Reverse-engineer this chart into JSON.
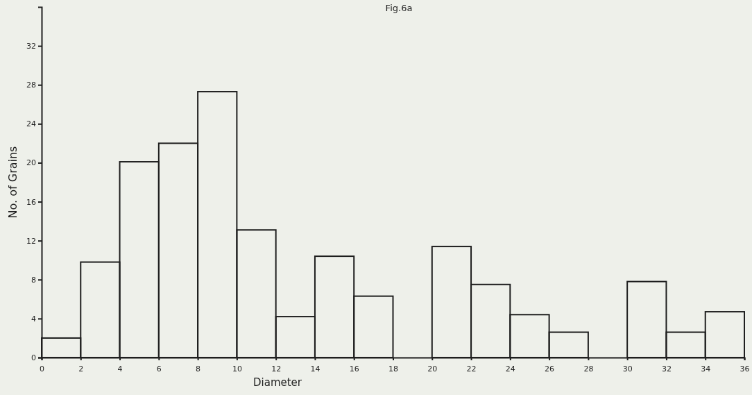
{
  "chart_data": {
    "type": "histogram",
    "title": "Fig.6a",
    "xlabel": "Diameter",
    "ylabel": "No. of Grains",
    "bins": [
      0,
      2,
      4,
      6,
      8,
      10,
      12,
      14,
      16,
      18,
      20,
      22,
      24,
      26,
      28,
      30,
      32,
      34,
      36
    ],
    "values": [
      2,
      9.8,
      20.1,
      22,
      27.3,
      13.1,
      4.2,
      10.4,
      6.3,
      0,
      11.4,
      7.5,
      4.4,
      2.6,
      0,
      7.8,
      2.6,
      4.7
    ],
    "color": "#1e1e1e",
    "xlim": [
      0,
      36
    ],
    "xticks": [
      0,
      2,
      4,
      6,
      8,
      10,
      12,
      14,
      16,
      18,
      20,
      22,
      24,
      26,
      28,
      30,
      32,
      34,
      36
    ],
    "ylim": [
      0,
      36
    ],
    "yticks": [
      0,
      4,
      8,
      12,
      16,
      20,
      24,
      28,
      32
    ],
    "grid": false
  }
}
